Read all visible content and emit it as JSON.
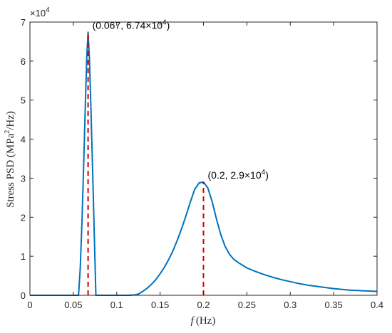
{
  "chart_data": {
    "type": "line",
    "xlabel_var": "f",
    "xlabel_unit": "(Hz)",
    "ylabel_main": "Stress PSD (MPa",
    "ylabel_sup": "2",
    "ylabel_tail": "/Hz)",
    "y_multiplier_text": "×10",
    "y_multiplier_exp": "4",
    "xlim": [
      0,
      0.4
    ],
    "ylim": [
      0,
      7
    ],
    "x_ticks": [
      0,
      0.05,
      0.1,
      0.15,
      0.2,
      0.25,
      0.3,
      0.35,
      0.4
    ],
    "x_tick_labels": [
      "0",
      "0.05",
      "0.1",
      "0.15",
      "0.2",
      "0.25",
      "0.3",
      "0.35",
      "0.4"
    ],
    "y_ticks": [
      0,
      1,
      2,
      3,
      4,
      5,
      6,
      7
    ],
    "y_tick_labels": [
      "0",
      "1",
      "2",
      "3",
      "4",
      "5",
      "6",
      "7"
    ],
    "grid": false,
    "series": [
      {
        "color": "#0072BD",
        "x": [
          0,
          0.056,
          0.058,
          0.06,
          0.062,
          0.064,
          0.0655,
          0.067,
          0.0685,
          0.07,
          0.072,
          0.074,
          0.076,
          0.078,
          0.08,
          0.1,
          0.115,
          0.12,
          0.125,
          0.13,
          0.135,
          0.14,
          0.145,
          0.15,
          0.155,
          0.16,
          0.165,
          0.17,
          0.175,
          0.18,
          0.185,
          0.19,
          0.195,
          0.2,
          0.205,
          0.21,
          0.215,
          0.22,
          0.225,
          0.23,
          0.235,
          0.24,
          0.245,
          0.25,
          0.26,
          0.27,
          0.28,
          0.29,
          0.3,
          0.31,
          0.32,
          0.33,
          0.34,
          0.35,
          0.36,
          0.37,
          0.38,
          0.39,
          0.4
        ],
        "y": [
          0,
          0,
          0.7,
          1.9,
          3.4,
          5.0,
          6.1,
          6.74,
          6.1,
          5.0,
          3.4,
          1.7,
          0,
          0,
          0,
          0,
          0,
          0.01,
          0.03,
          0.1,
          0.18,
          0.28,
          0.4,
          0.55,
          0.72,
          0.92,
          1.15,
          1.42,
          1.72,
          2.05,
          2.4,
          2.72,
          2.88,
          2.9,
          2.75,
          2.4,
          1.95,
          1.55,
          1.25,
          1.05,
          0.92,
          0.84,
          0.77,
          0.7,
          0.61,
          0.53,
          0.46,
          0.4,
          0.35,
          0.3,
          0.26,
          0.23,
          0.2,
          0.17,
          0.15,
          0.13,
          0.12,
          0.11,
          0.1
        ]
      }
    ],
    "markers": [
      {
        "x": 0.067,
        "y": 6.74,
        "color": "#D00000"
      },
      {
        "x": 0.2,
        "y": 2.9,
        "color": "#D00000"
      }
    ],
    "annotations": [
      {
        "x": 0.067,
        "y": 6.74,
        "text": "(0.067, 6.74×10",
        "sup": "4",
        "tail": ")"
      },
      {
        "x": 0.2,
        "y": 2.9,
        "text": "(0.2, 2.9×10",
        "sup": "4",
        "tail": ")"
      }
    ]
  }
}
